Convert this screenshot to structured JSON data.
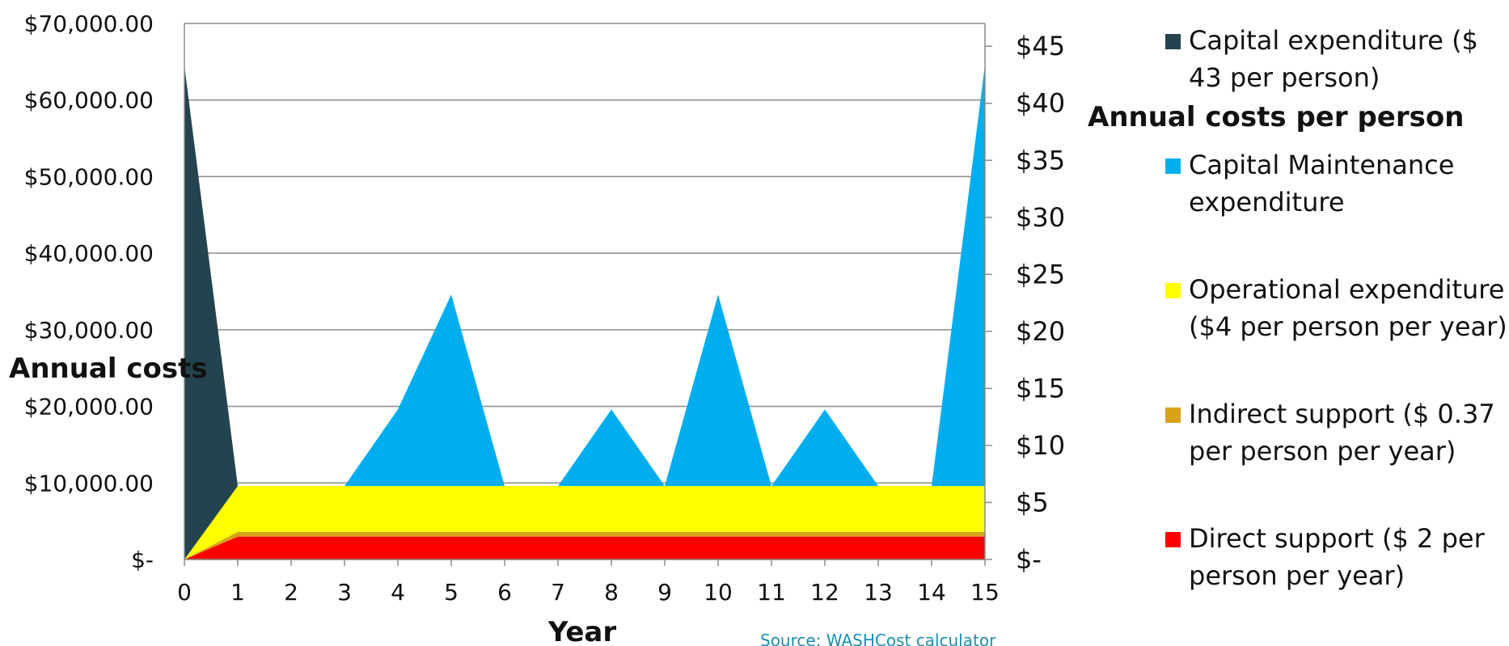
{
  "chart_data": {
    "type": "area",
    "stacked": true,
    "x": [
      0,
      1,
      2,
      3,
      4,
      5,
      6,
      7,
      8,
      9,
      10,
      11,
      12,
      13,
      14,
      15
    ],
    "xlabel": "Year",
    "ylabel": "Annual costs",
    "ylim": [
      0,
      70000
    ],
    "y2lim": [
      0,
      47
    ],
    "left_ticks": [
      "$-",
      "$10,000.00",
      "$20,000.00",
      "$30,000.00",
      "$40,000.00",
      "$50,000.00",
      "$60,000.00",
      "$70,000.00"
    ],
    "right_ticks": [
      "$-",
      "$5",
      "$10",
      "$15",
      "$20",
      "$25",
      "$30",
      "$35",
      "$40",
      "$45"
    ],
    "right_tick_values": [
      0,
      5,
      10,
      15,
      20,
      25,
      30,
      35,
      40,
      45
    ],
    "x_ticks": [
      "0",
      "1",
      "2",
      "3",
      "4",
      "5",
      "6",
      "7",
      "8",
      "9",
      "10",
      "11",
      "12",
      "13",
      "14",
      "15"
    ],
    "grid": "horizontal",
    "legend_position": "right",
    "series": [
      {
        "name": "Direct support ($ 2 per person per year)",
        "color": "#ff0000",
        "values": [
          0,
          3000,
          3000,
          3000,
          3000,
          3000,
          3000,
          3000,
          3000,
          3000,
          3000,
          3000,
          3000,
          3000,
          3000,
          3000
        ]
      },
      {
        "name": "Indirect support ($ 0.37 per person per year)",
        "color": "#d8a21a",
        "values": [
          0,
          600,
          600,
          600,
          600,
          600,
          600,
          600,
          600,
          600,
          600,
          600,
          600,
          600,
          600,
          600
        ]
      },
      {
        "name": "Operational expenditure ($4 per person per year)",
        "color": "#ffff00",
        "values": [
          0,
          6000,
          6000,
          6000,
          6000,
          6000,
          6000,
          6000,
          6000,
          6000,
          6000,
          6000,
          6000,
          6000,
          6000,
          6000
        ]
      },
      {
        "name": "Capital Maintenance expenditure",
        "color": "#00aeef",
        "values": [
          0,
          0,
          0,
          0,
          10000,
          25000,
          0,
          0,
          10000,
          0,
          25000,
          0,
          10000,
          0,
          0,
          55000
        ]
      },
      {
        "name": "Capital expenditure ($ 43 per person)",
        "color": "#23444f",
        "values": [
          64500,
          0,
          0,
          0,
          0,
          0,
          0,
          0,
          0,
          0,
          0,
          0,
          0,
          0,
          0,
          0
        ]
      }
    ]
  },
  "legend": {
    "heading": "Annual costs per person",
    "items": [
      {
        "label": "Capital expenditure ($ 43 per person)",
        "color": "#23444f"
      },
      {
        "label": "Capital Maintenance expenditure",
        "color": "#00aeef"
      },
      {
        "label": "Operational expenditure ($4 per person per year)",
        "color": "#ffff00"
      },
      {
        "label": "Indirect support ($ 0.37 per person per year)",
        "color": "#d8a21a"
      },
      {
        "label": "Direct support ($ 2 per person per year)",
        "color": "#ff0000"
      }
    ]
  },
  "source": "Source: WASHCost calculator"
}
